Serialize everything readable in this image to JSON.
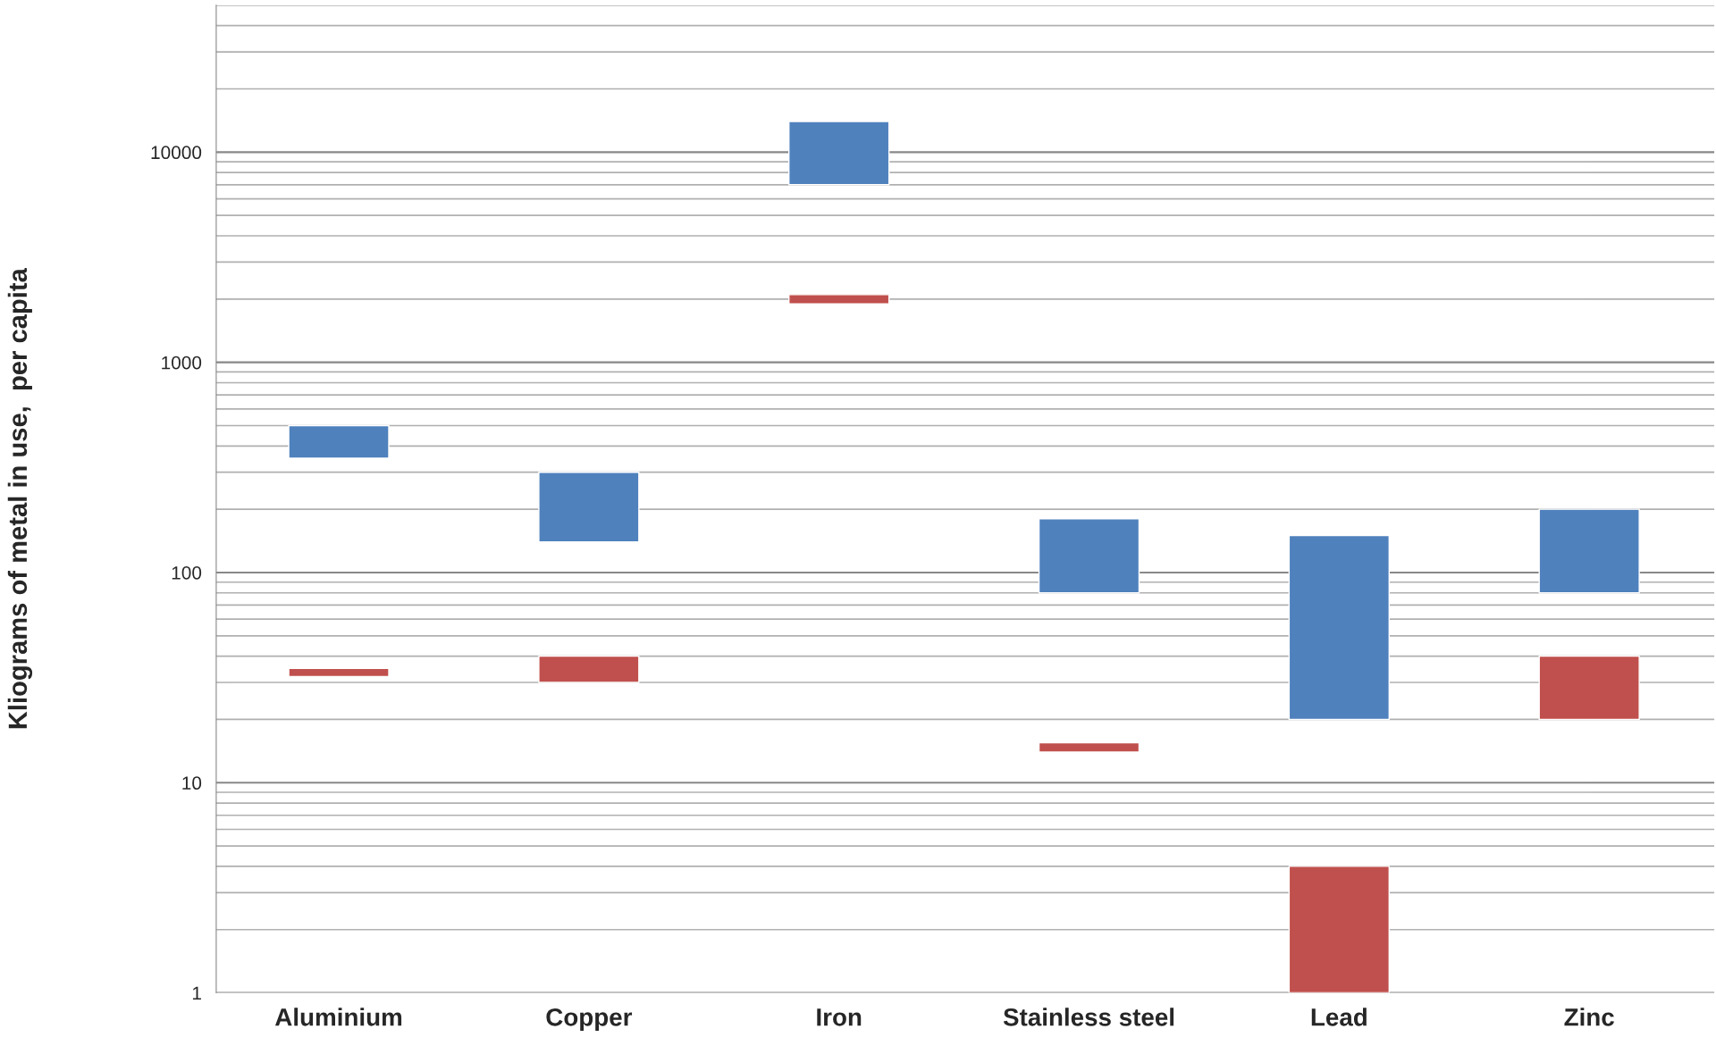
{
  "chart_data": {
    "type": "bar",
    "ylabel": "Kliograms of metal in use,  per capita",
    "categories": [
      "Aluminium",
      "Copper",
      "Iron",
      "Stainless steel",
      "Lead",
      "Zinc"
    ],
    "series": [
      {
        "color": "#4f81bd",
        "base": [
          350,
          140,
          7000,
          80,
          20,
          80
        ],
        "values": [
          150,
          160,
          7000,
          100,
          130,
          120
        ]
      },
      {
        "color": "#c0504d",
        "base": [
          32,
          30,
          1900,
          14,
          1,
          20
        ],
        "values": [
          3,
          10,
          200,
          1.5,
          3,
          20
        ]
      }
    ],
    "log": true,
    "ylim": [
      1,
      50000
    ],
    "yticks": [
      1,
      10,
      100,
      1000,
      10000
    ],
    "grid": true
  }
}
